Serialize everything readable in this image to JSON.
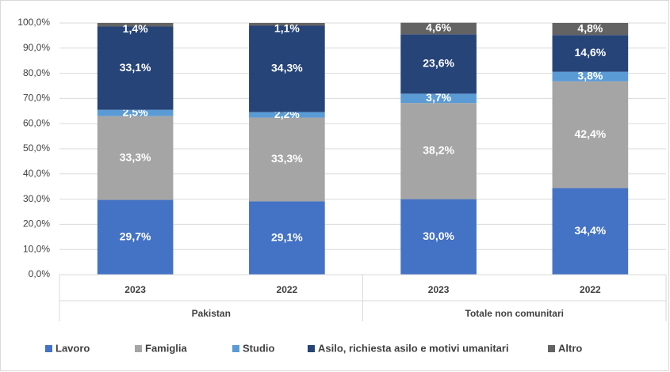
{
  "chart_data": {
    "type": "stacked_bar",
    "groups": [
      {
        "name": "Pakistan",
        "categories": [
          "2023",
          "2022"
        ]
      },
      {
        "name": "Totale non comunitari",
        "categories": [
          "2023",
          "2022"
        ]
      }
    ],
    "series": [
      {
        "name": "Lavoro",
        "color": "#4472c4",
        "values": [
          29.7,
          29.1,
          30.0,
          34.4
        ],
        "value_labels": [
          "29,7%",
          "29,1%",
          "30,0%",
          "34,4%"
        ]
      },
      {
        "name": "Famiglia",
        "color": "#a5a5a5",
        "values": [
          33.3,
          33.3,
          38.2,
          42.4
        ],
        "value_labels": [
          "33,3%",
          "33,3%",
          "38,2%",
          "42,4%"
        ]
      },
      {
        "name": "Studio",
        "color": "#5b9bd5",
        "values": [
          2.5,
          2.2,
          3.7,
          3.8
        ],
        "value_labels": [
          "2,5%",
          "2,2%",
          "3,7%",
          "3,8%"
        ]
      },
      {
        "name": "Asilo, richiesta asilo e motivi umanitari",
        "color": "#264478",
        "values": [
          33.1,
          34.3,
          23.6,
          14.6
        ],
        "value_labels": [
          "33,1%",
          "34,3%",
          "23,6%",
          "14,6%"
        ]
      },
      {
        "name": "Altro",
        "color": "#636363",
        "values": [
          1.4,
          1.1,
          4.6,
          4.8
        ],
        "value_labels": [
          "1,4%",
          "1,1%",
          "4,6%",
          "4,8%"
        ]
      }
    ],
    "ylim": [
      0,
      100
    ],
    "yticks": [
      {
        "value": 0,
        "label": "0,0%"
      },
      {
        "value": 10,
        "label": "10,0%"
      },
      {
        "value": 20,
        "label": "20,0%"
      },
      {
        "value": 30,
        "label": "30,0%"
      },
      {
        "value": 40,
        "label": "40,0%"
      },
      {
        "value": 50,
        "label": "50,0%"
      },
      {
        "value": 60,
        "label": "60,0%"
      },
      {
        "value": 70,
        "label": "70,0%"
      },
      {
        "value": 80,
        "label": "80,0%"
      },
      {
        "value": 90,
        "label": "90,0%"
      },
      {
        "value": 100,
        "label": "100,0%"
      }
    ],
    "grid": true
  }
}
